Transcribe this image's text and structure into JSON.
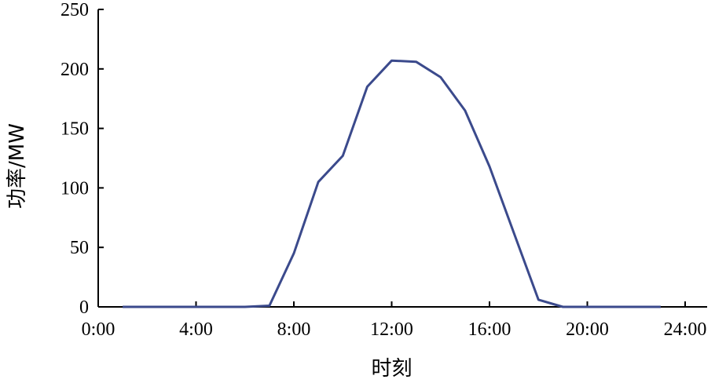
{
  "chart_data": {
    "type": "line",
    "title": "",
    "xlabel": "时刻",
    "ylabel": "功率/MW",
    "xlim": [
      0,
      24
    ],
    "ylim": [
      0,
      250
    ],
    "x_ticks": [
      0,
      4,
      8,
      12,
      16,
      20,
      24
    ],
    "x_tick_labels": [
      "0:00",
      "4:00",
      "8:00",
      "12:00",
      "16:00",
      "20:00",
      "24:00"
    ],
    "y_ticks": [
      0,
      50,
      100,
      150,
      200,
      250
    ],
    "y_tick_labels": [
      "0",
      "50",
      "100",
      "150",
      "200",
      "250"
    ],
    "grid": false,
    "series": [
      {
        "color": "#3b4a8c",
        "x": [
          1,
          2,
          3,
          4,
          5,
          6,
          7,
          8,
          9,
          10,
          11,
          12,
          13,
          14,
          15,
          16,
          17,
          18,
          19,
          20,
          21,
          22,
          23
        ],
        "y": [
          0,
          0,
          0,
          0,
          0,
          0,
          1,
          45,
          105,
          127,
          185,
          207,
          206,
          193,
          165,
          118,
          62,
          6,
          0,
          0,
          0,
          0,
          0
        ]
      }
    ]
  }
}
